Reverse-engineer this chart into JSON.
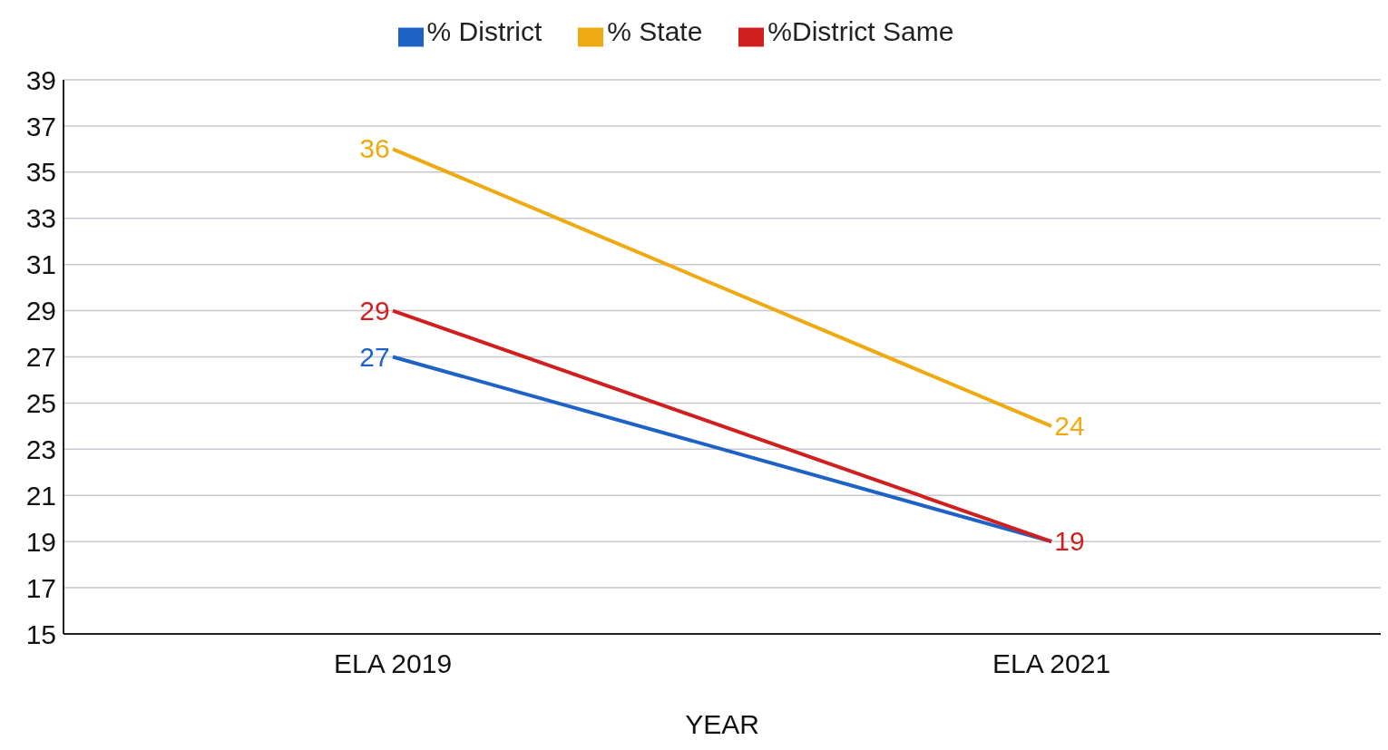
{
  "chart_data": {
    "type": "line",
    "xlabel": "YEAR",
    "categories": [
      "ELA 2019",
      "ELA 2021"
    ],
    "series": [
      {
        "name": "% District",
        "color": "#1f62c6",
        "values": [
          27,
          19
        ],
        "value_labels": [
          "27",
          null
        ]
      },
      {
        "name": "%District Same",
        "color": "#d01f1f",
        "values": [
          29,
          19
        ],
        "value_labels": [
          "29",
          "19"
        ]
      },
      {
        "name": "% State",
        "color": "#eeaa10",
        "values": [
          36,
          24
        ],
        "value_labels": [
          "36",
          "24"
        ]
      }
    ],
    "ylim": [
      15,
      39
    ],
    "yticks": [
      15,
      17,
      19,
      21,
      23,
      25,
      27,
      29,
      31,
      33,
      35,
      37,
      39
    ],
    "grid": "y",
    "legend": "top",
    "marker": "none",
    "line_style": "solid"
  }
}
